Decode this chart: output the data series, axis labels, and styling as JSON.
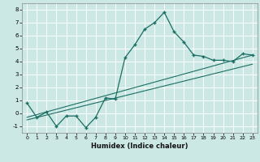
{
  "title": "",
  "xlabel": "Humidex (Indice chaleur)",
  "ylabel": "",
  "bg_color": "#cce8e4",
  "line_color": "#1a6e64",
  "grid_color": "#ffffff",
  "grid_minor_color": "#e8d8d8",
  "xlim": [
    -0.5,
    23.5
  ],
  "ylim": [
    -1.5,
    8.5
  ],
  "xticks": [
    0,
    1,
    2,
    3,
    4,
    5,
    6,
    7,
    8,
    9,
    10,
    11,
    12,
    13,
    14,
    15,
    16,
    17,
    18,
    19,
    20,
    21,
    22,
    23
  ],
  "yticks": [
    -1,
    0,
    1,
    2,
    3,
    4,
    5,
    6,
    7,
    8
  ],
  "line1_x": [
    0,
    1,
    2,
    3,
    4,
    5,
    6,
    7,
    8,
    9,
    10,
    11,
    12,
    13,
    14,
    15,
    16,
    17,
    18,
    19,
    20,
    21,
    22,
    23
  ],
  "line1_y": [
    0.8,
    -0.3,
    0.1,
    -1.0,
    -0.2,
    -0.2,
    -1.1,
    -0.3,
    1.2,
    1.1,
    4.3,
    5.3,
    6.5,
    7.0,
    7.8,
    6.3,
    5.5,
    4.5,
    4.4,
    4.1,
    4.1,
    4.0,
    4.6,
    4.5
  ],
  "line2_x": [
    0,
    23
  ],
  "line2_y": [
    -0.3,
    4.5
  ],
  "line3_x": [
    0,
    23
  ],
  "line3_y": [
    -0.5,
    3.8
  ]
}
